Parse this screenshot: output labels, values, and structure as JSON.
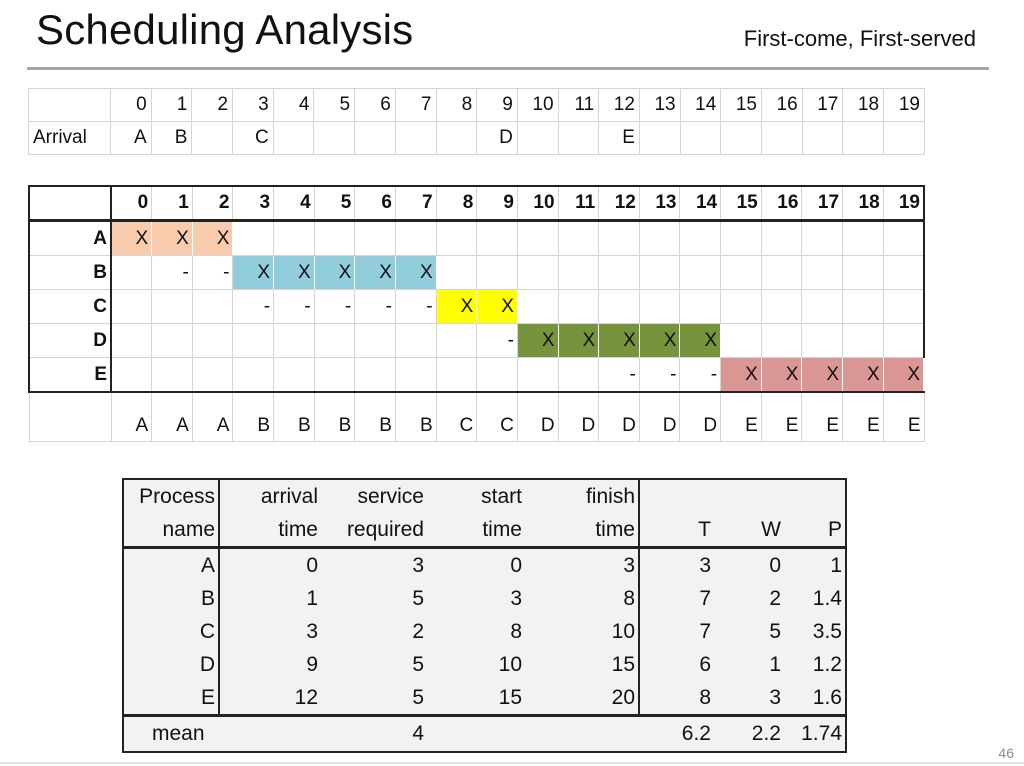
{
  "slide": {
    "title": "Scheduling Analysis",
    "subtitle": "First-come, First-served",
    "page_number": "46"
  },
  "arrival_table": {
    "row_label": "Arrival",
    "time_ticks": [
      "0",
      "1",
      "2",
      "3",
      "4",
      "5",
      "6",
      "7",
      "8",
      "9",
      "10",
      "11",
      "12",
      "13",
      "14",
      "15",
      "16",
      "17",
      "18",
      "19"
    ],
    "arrivals": [
      "A",
      "B",
      "",
      "C",
      "",
      "",
      "",
      "",
      "",
      "D",
      "",
      "",
      "E",
      "",
      "",
      "",
      "",
      "",
      "",
      ""
    ]
  },
  "gantt": {
    "time_ticks": [
      "0",
      "1",
      "2",
      "3",
      "4",
      "5",
      "6",
      "7",
      "8",
      "9",
      "10",
      "11",
      "12",
      "13",
      "14",
      "15",
      "16",
      "17",
      "18",
      "19"
    ],
    "colors": {
      "A": "#f8cbad",
      "B": "#92cddc",
      "C": "#ffff00",
      "D": "#77933c",
      "E": "#da9694"
    },
    "rows": [
      {
        "process": "A",
        "cells": [
          "X",
          "X",
          "X",
          "",
          "",
          "",
          "",
          "",
          "",
          "",
          "",
          "",
          "",
          "",
          "",
          "",
          "",
          "",
          "",
          ""
        ]
      },
      {
        "process": "B",
        "cells": [
          "",
          "-",
          "-",
          "X",
          "X",
          "X",
          "X",
          "X",
          "",
          "",
          "",
          "",
          "",
          "",
          "",
          "",
          "",
          "",
          "",
          ""
        ]
      },
      {
        "process": "C",
        "cells": [
          "",
          "",
          "",
          "-",
          "-",
          "-",
          "-",
          "-",
          "X",
          "X",
          "",
          "",
          "",
          "",
          "",
          "",
          "",
          "",
          "",
          ""
        ]
      },
      {
        "process": "D",
        "cells": [
          "",
          "",
          "",
          "",
          "",
          "",
          "",
          "",
          "",
          "-",
          "X",
          "X",
          "X",
          "X",
          "X",
          "",
          "",
          "",
          "",
          ""
        ]
      },
      {
        "process": "E",
        "cells": [
          "",
          "",
          "",
          "",
          "",
          "",
          "",
          "",
          "",
          "",
          "",
          "",
          "-",
          "-",
          "-",
          "X",
          "X",
          "X",
          "X",
          "X"
        ]
      }
    ],
    "running_sequence": [
      "A",
      "A",
      "A",
      "B",
      "B",
      "B",
      "B",
      "B",
      "C",
      "C",
      "D",
      "D",
      "D",
      "D",
      "D",
      "E",
      "E",
      "E",
      "E",
      "E"
    ]
  },
  "stats_table": {
    "headers_line1": [
      "Process",
      "arrival",
      "service",
      "start",
      "finish",
      "",
      "",
      ""
    ],
    "headers_line2": [
      "name",
      "time",
      "required",
      "time",
      "time",
      "T",
      "W",
      "P"
    ],
    "rows": [
      {
        "name": "A",
        "arrival": "0",
        "service": "3",
        "start": "0",
        "finish": "3",
        "T": "3",
        "W": "0",
        "P": "1"
      },
      {
        "name": "B",
        "arrival": "1",
        "service": "5",
        "start": "3",
        "finish": "8",
        "T": "7",
        "W": "2",
        "P": "1.4"
      },
      {
        "name": "C",
        "arrival": "3",
        "service": "2",
        "start": "8",
        "finish": "10",
        "T": "7",
        "W": "5",
        "P": "3.5"
      },
      {
        "name": "D",
        "arrival": "9",
        "service": "5",
        "start": "10",
        "finish": "15",
        "T": "6",
        "W": "1",
        "P": "1.2"
      },
      {
        "name": "E",
        "arrival": "12",
        "service": "5",
        "start": "15",
        "finish": "20",
        "T": "8",
        "W": "3",
        "P": "1.6"
      }
    ],
    "mean": {
      "label": "mean",
      "service": "4",
      "T": "6.2",
      "W": "2.2",
      "P": "1.74"
    }
  }
}
